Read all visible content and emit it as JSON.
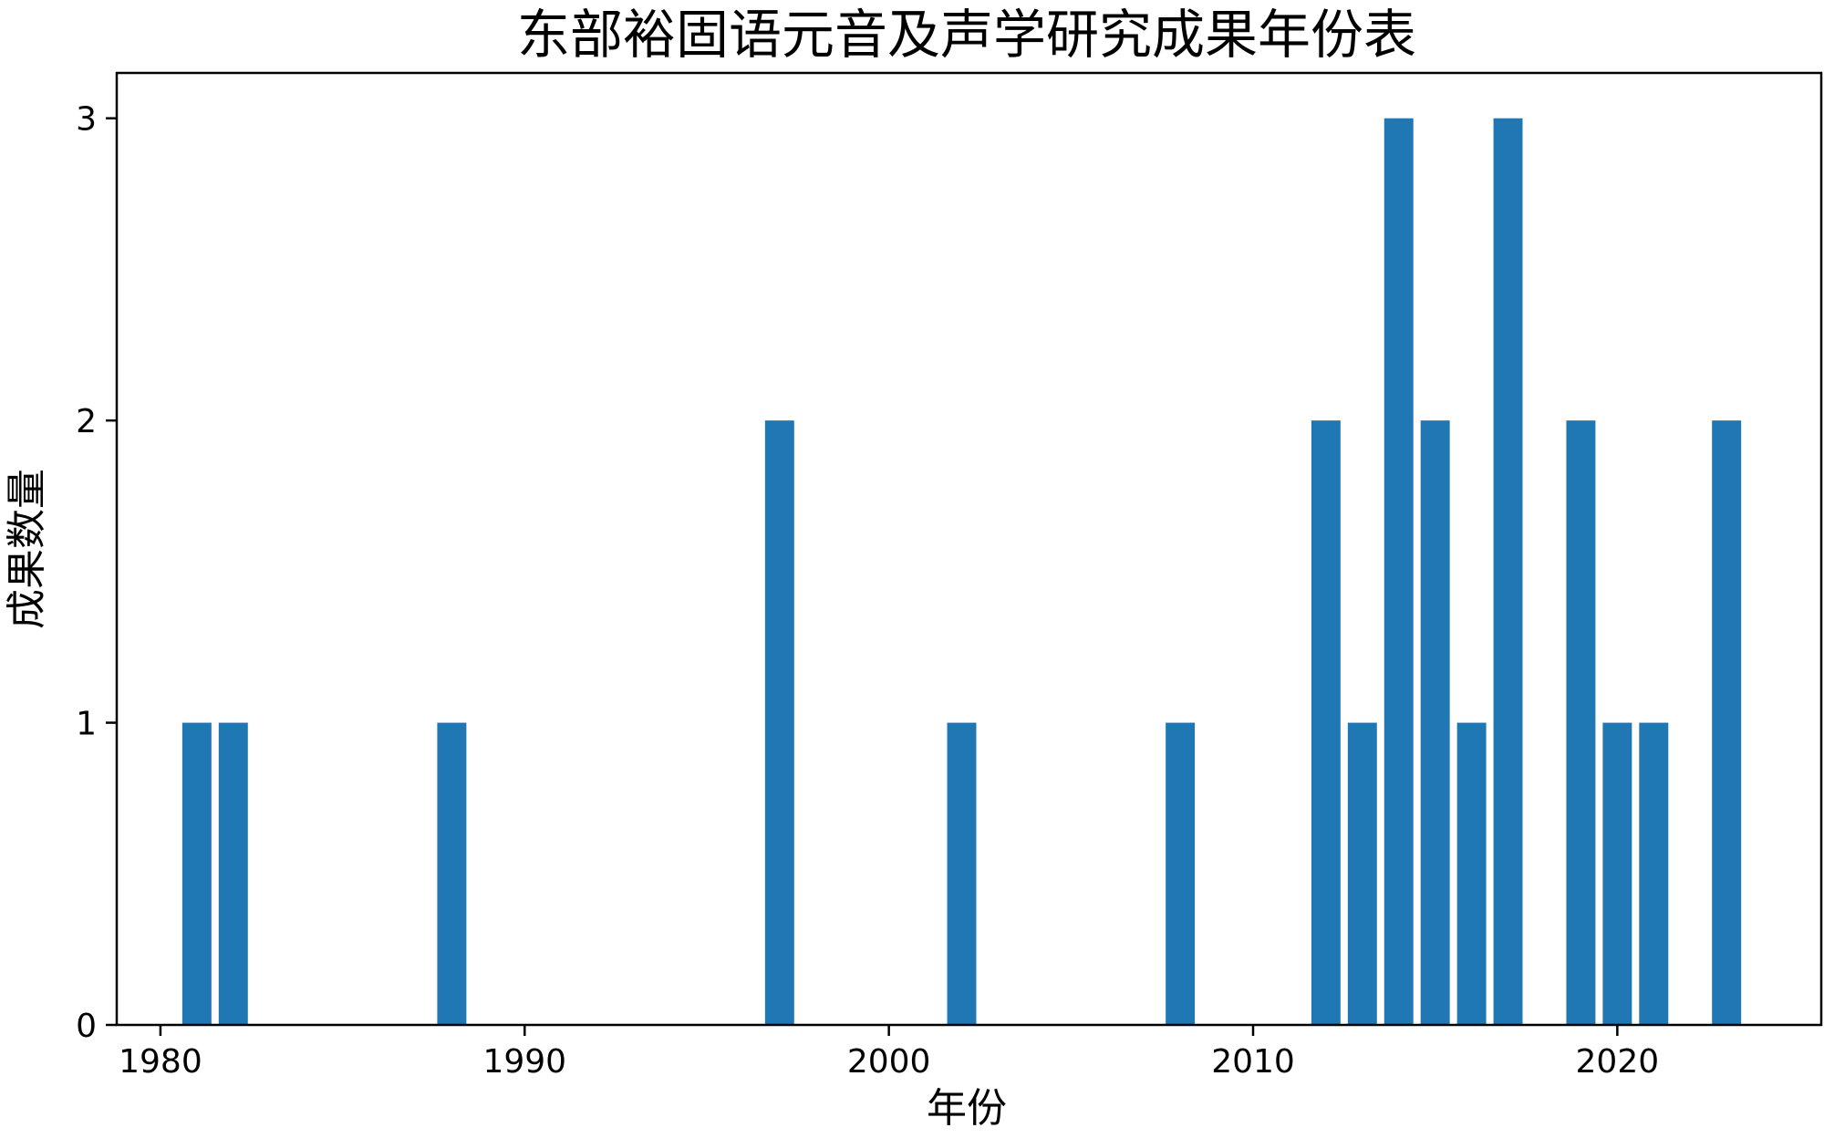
{
  "chart_data": {
    "type": "bar",
    "title": "东部裕固语元音及声学研究成果年份表",
    "xlabel": "年份",
    "ylabel": "成果数量",
    "xlim": [
      1978.8,
      2025.6
    ],
    "ylim": [
      0,
      3.15
    ],
    "xticks": [
      1980,
      1990,
      2000,
      2010,
      2020
    ],
    "yticks": [
      0,
      1,
      2,
      3
    ],
    "bar_width_years": 0.8,
    "bar_color": "#1f77b4",
    "grid": false,
    "legend": "none",
    "x": [
      1981,
      1982,
      1988,
      1997,
      2002,
      2008,
      2012,
      2013,
      2014,
      2015,
      2016,
      2017,
      2019,
      2020,
      2021,
      2023
    ],
    "values": [
      1,
      1,
      1,
      2,
      1,
      1,
      2,
      1,
      3,
      2,
      1,
      3,
      2,
      1,
      1,
      2
    ]
  }
}
